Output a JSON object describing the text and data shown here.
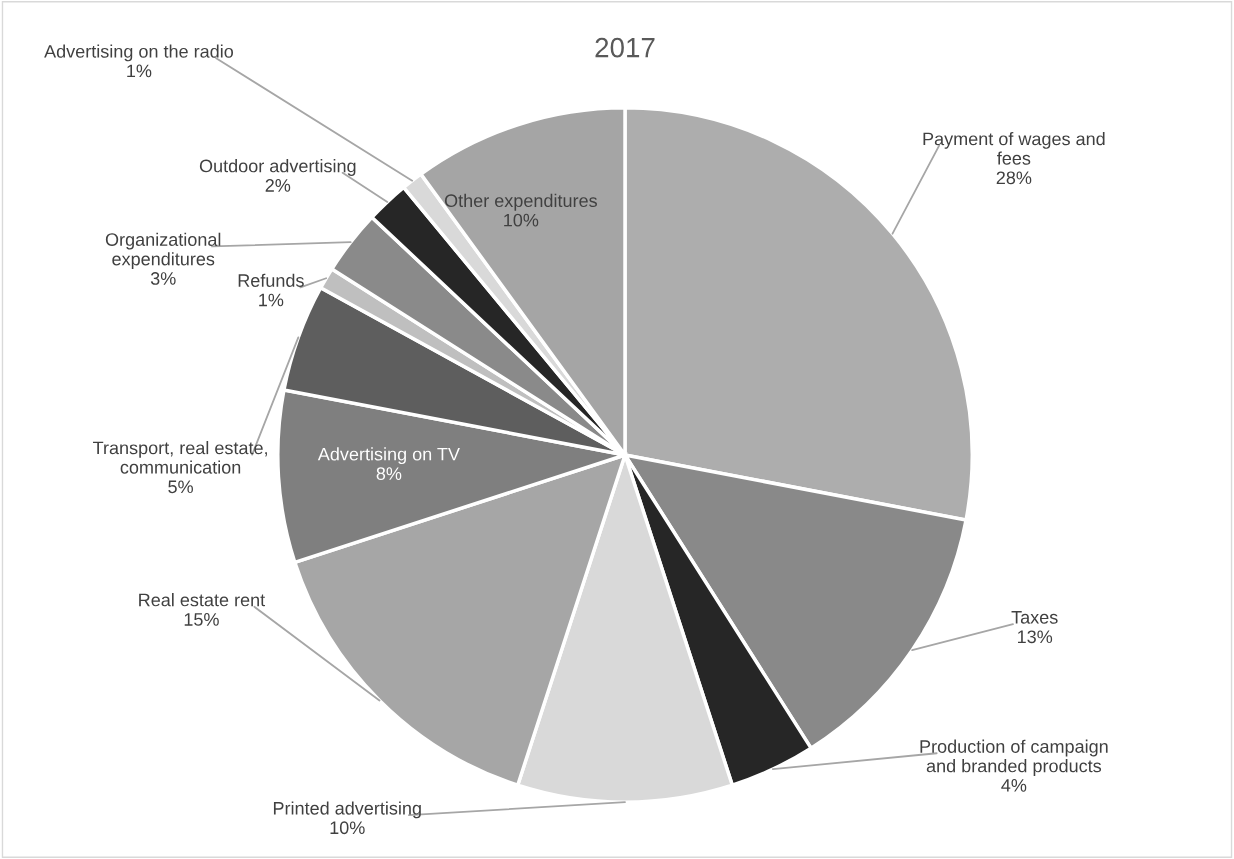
{
  "chart_data": {
    "type": "pie",
    "title": "2017",
    "categories": [
      "Payment of wages and fees",
      "Taxes",
      "Production of campaign and branded products",
      "Printed advertising",
      "Real estate rent",
      "Advertising on TV",
      "Transport, real estate, communication",
      "Refunds",
      "Organizational expenditures",
      "Outdoor advertising",
      "Advertising on the radio",
      "Other expenditures"
    ],
    "values": [
      28,
      13,
      4,
      10,
      15,
      8,
      5,
      1,
      3,
      2,
      1,
      10
    ],
    "value_labels": [
      "28%",
      "13%",
      "4%",
      "10%",
      "15%",
      "8%",
      "5%",
      "1%",
      "3%",
      "2%",
      "1%",
      "10%"
    ],
    "colors": [
      "#adadad",
      "#898989",
      "#262626",
      "#d9d9d9",
      "#a6a6a6",
      "#7f7f7f",
      "#5e5e5e",
      "#bfbfbf",
      "#8a8a8a",
      "#262626",
      "#d9d9d9",
      "#a5a5a5"
    ],
    "legend": false
  }
}
